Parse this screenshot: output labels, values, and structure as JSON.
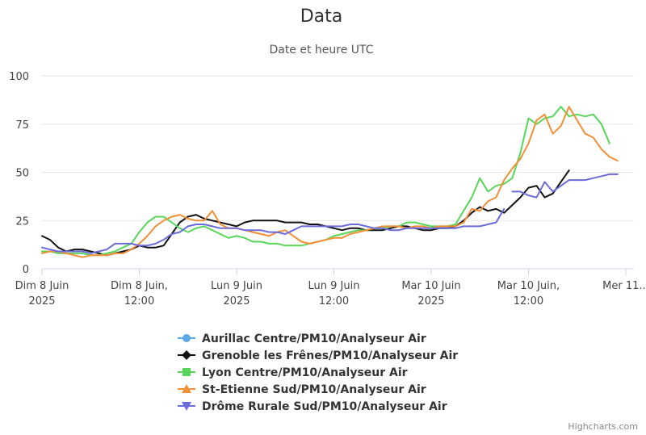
{
  "chart_data": {
    "type": "line",
    "title": "Data",
    "subtitle": "Date et heure UTC",
    "xlabel": "",
    "ylabel": "",
    "ylim": [
      0,
      100
    ],
    "yticks": [
      0,
      25,
      50,
      75,
      100
    ],
    "xlim": [
      0,
      73
    ],
    "xticks": [
      {
        "x": 0,
        "lines": [
          "Dim 8 Juin",
          "2025"
        ]
      },
      {
        "x": 12,
        "lines": [
          "Dim 8 Juin,",
          "12:00"
        ]
      },
      {
        "x": 24,
        "lines": [
          "Lun 9 Juin",
          "2025"
        ]
      },
      {
        "x": 36,
        "lines": [
          "Lun 9 Juin",
          "12:00"
        ]
      },
      {
        "x": 48,
        "lines": [
          "Mar 10 Juin",
          "2025"
        ]
      },
      {
        "x": 60,
        "lines": [
          "Mar 10 Juin,",
          "12:00"
        ]
      },
      {
        "x": 72,
        "lines": [
          "Mer 11..."
        ]
      }
    ],
    "grid": true,
    "legend_position": "bottom",
    "series": [
      {
        "name": "Aurillac Centre/PM10/Analyseur Air",
        "color": "#5aa7e6",
        "marker": "circle",
        "points": []
      },
      {
        "name": "Grenoble les Frênes/PM10/Analyseur Air",
        "color": "#111111",
        "marker": "diamond",
        "points": [
          [
            0,
            17
          ],
          [
            1,
            15
          ],
          [
            2,
            11
          ],
          [
            3,
            9
          ],
          [
            4,
            10
          ],
          [
            5,
            10
          ],
          [
            6,
            9
          ],
          [
            7,
            8
          ],
          [
            8,
            7
          ],
          [
            9,
            8
          ],
          [
            10,
            9
          ],
          [
            11,
            10
          ],
          [
            12,
            12
          ],
          [
            13,
            11
          ],
          [
            14,
            11
          ],
          [
            15,
            12
          ],
          [
            16,
            18
          ],
          [
            17,
            24
          ],
          [
            18,
            27
          ],
          [
            19,
            28
          ],
          [
            20,
            26
          ],
          [
            21,
            25
          ],
          [
            22,
            24
          ],
          [
            23,
            23
          ],
          [
            24,
            22
          ],
          [
            25,
            24
          ],
          [
            26,
            25
          ],
          [
            27,
            25
          ],
          [
            28,
            25
          ],
          [
            29,
            25
          ],
          [
            30,
            24
          ],
          [
            31,
            24
          ],
          [
            32,
            24
          ],
          [
            33,
            23
          ],
          [
            34,
            23
          ],
          [
            35,
            22
          ],
          [
            36,
            21
          ],
          [
            37,
            20
          ],
          [
            38,
            21
          ],
          [
            39,
            21
          ],
          [
            40,
            20
          ],
          [
            41,
            20
          ],
          [
            42,
            20
          ],
          [
            43,
            21
          ],
          [
            44,
            22
          ],
          [
            45,
            22
          ],
          [
            46,
            21
          ],
          [
            47,
            20
          ],
          [
            48,
            20
          ],
          [
            49,
            21
          ],
          [
            50,
            21
          ],
          [
            51,
            22
          ],
          [
            52,
            25
          ],
          [
            53,
            29
          ],
          [
            54,
            32
          ],
          [
            55,
            30
          ],
          [
            56,
            31
          ],
          [
            57,
            29
          ],
          [
            58,
            33
          ],
          [
            59,
            37
          ],
          [
            60,
            42
          ],
          [
            61,
            43
          ],
          [
            62,
            37
          ],
          [
            63,
            39
          ],
          [
            64,
            45
          ],
          [
            65,
            51
          ]
        ]
      },
      {
        "name": "Lyon Centre/PM10/Analyseur Air",
        "color": "#59d65a",
        "marker": "square",
        "points": [
          [
            0,
            9
          ],
          [
            1,
            9
          ],
          [
            2,
            8
          ],
          [
            3,
            8
          ],
          [
            4,
            8
          ],
          [
            5,
            8
          ],
          [
            6,
            7
          ],
          [
            7,
            7
          ],
          [
            8,
            8
          ],
          [
            9,
            9
          ],
          [
            10,
            11
          ],
          [
            11,
            13
          ],
          [
            12,
            19
          ],
          [
            13,
            24
          ],
          [
            14,
            27
          ],
          [
            15,
            27
          ],
          [
            16,
            24
          ],
          [
            17,
            21
          ],
          [
            18,
            19
          ],
          [
            19,
            21
          ],
          [
            20,
            22
          ],
          [
            21,
            20
          ],
          [
            22,
            18
          ],
          [
            23,
            16
          ],
          [
            24,
            17
          ],
          [
            25,
            16
          ],
          [
            26,
            14
          ],
          [
            27,
            14
          ],
          [
            28,
            13
          ],
          [
            29,
            13
          ],
          [
            30,
            12
          ],
          [
            31,
            12
          ],
          [
            32,
            12
          ],
          [
            33,
            13
          ],
          [
            34,
            14
          ],
          [
            35,
            15
          ],
          [
            36,
            17
          ],
          [
            37,
            18
          ],
          [
            38,
            19
          ],
          [
            39,
            20
          ],
          [
            40,
            20
          ],
          [
            41,
            21
          ],
          [
            42,
            21
          ],
          [
            43,
            22
          ],
          [
            44,
            22
          ],
          [
            45,
            24
          ],
          [
            46,
            24
          ],
          [
            47,
            23
          ],
          [
            48,
            22
          ],
          [
            49,
            22
          ],
          [
            50,
            22
          ],
          [
            51,
            23
          ],
          [
            52,
            30
          ],
          [
            53,
            37
          ],
          [
            54,
            47
          ],
          [
            55,
            40
          ],
          [
            56,
            43
          ],
          [
            57,
            44
          ],
          [
            58,
            47
          ],
          [
            59,
            60
          ],
          [
            60,
            78
          ],
          [
            61,
            75
          ],
          [
            62,
            78
          ],
          [
            63,
            79
          ],
          [
            64,
            84
          ],
          [
            65,
            79
          ],
          [
            66,
            80
          ],
          [
            67,
            79
          ],
          [
            68,
            80
          ],
          [
            69,
            75
          ],
          [
            70,
            65
          ]
        ]
      },
      {
        "name": "St-Etienne Sud/PM10/Analyseur Air",
        "color": "#f28f37",
        "marker": "triangle",
        "points": [
          [
            0,
            8
          ],
          [
            1,
            9
          ],
          [
            2,
            9
          ],
          [
            3,
            8
          ],
          [
            4,
            7
          ],
          [
            5,
            6
          ],
          [
            6,
            7
          ],
          [
            7,
            7
          ],
          [
            8,
            7
          ],
          [
            9,
            8
          ],
          [
            10,
            8
          ],
          [
            11,
            10
          ],
          [
            12,
            13
          ],
          [
            13,
            17
          ],
          [
            14,
            22
          ],
          [
            15,
            25
          ],
          [
            16,
            27
          ],
          [
            17,
            28
          ],
          [
            18,
            26
          ],
          [
            19,
            25
          ],
          [
            20,
            25
          ],
          [
            21,
            30
          ],
          [
            22,
            23
          ],
          [
            23,
            21
          ],
          [
            24,
            21
          ],
          [
            25,
            20
          ],
          [
            26,
            19
          ],
          [
            27,
            18
          ],
          [
            28,
            17
          ],
          [
            29,
            19
          ],
          [
            30,
            20
          ],
          [
            31,
            17
          ],
          [
            32,
            14
          ],
          [
            33,
            13
          ],
          [
            34,
            14
          ],
          [
            35,
            15
          ],
          [
            36,
            16
          ],
          [
            37,
            16
          ],
          [
            38,
            18
          ],
          [
            39,
            19
          ],
          [
            40,
            20
          ],
          [
            41,
            21
          ],
          [
            42,
            22
          ],
          [
            43,
            22
          ],
          [
            44,
            22
          ],
          [
            45,
            21
          ],
          [
            46,
            22
          ],
          [
            47,
            22
          ],
          [
            48,
            21
          ],
          [
            49,
            22
          ],
          [
            50,
            22
          ],
          [
            51,
            22
          ],
          [
            52,
            24
          ],
          [
            53,
            31
          ],
          [
            54,
            30
          ],
          [
            55,
            35
          ],
          [
            56,
            37
          ],
          [
            57,
            46
          ],
          [
            58,
            52
          ],
          [
            59,
            57
          ],
          [
            60,
            65
          ],
          [
            61,
            77
          ],
          [
            62,
            80
          ],
          [
            63,
            70
          ],
          [
            64,
            74
          ],
          [
            65,
            84
          ],
          [
            66,
            77
          ],
          [
            67,
            70
          ],
          [
            68,
            68
          ],
          [
            69,
            62
          ],
          [
            70,
            58
          ],
          [
            71,
            56
          ]
        ]
      },
      {
        "name": "Drôme Rurale Sud/PM10/Analyseur Air",
        "color": "#6b6bdb",
        "marker": "triangle-down",
        "points": [
          [
            0,
            11
          ],
          [
            1,
            10
          ],
          [
            2,
            9
          ],
          [
            3,
            9
          ],
          [
            4,
            9
          ],
          [
            5,
            9
          ],
          [
            6,
            8
          ],
          [
            7,
            9
          ],
          [
            8,
            10
          ],
          [
            9,
            13
          ],
          [
            10,
            13
          ],
          [
            11,
            13
          ],
          [
            12,
            12
          ],
          [
            13,
            12
          ],
          [
            14,
            13
          ],
          [
            15,
            15
          ],
          [
            16,
            18
          ],
          [
            17,
            19
          ],
          [
            18,
            22
          ],
          [
            19,
            23
          ],
          [
            20,
            23
          ],
          [
            21,
            22
          ],
          [
            22,
            21
          ],
          [
            23,
            21
          ],
          [
            24,
            21
          ],
          [
            25,
            20
          ],
          [
            26,
            20
          ],
          [
            27,
            20
          ],
          [
            28,
            19
          ],
          [
            29,
            19
          ],
          [
            30,
            18
          ],
          [
            31,
            20
          ],
          [
            32,
            22
          ],
          [
            33,
            22
          ],
          [
            34,
            22
          ],
          [
            35,
            22
          ],
          [
            36,
            22
          ],
          [
            37,
            22
          ],
          [
            38,
            23
          ],
          [
            39,
            23
          ],
          [
            40,
            22
          ],
          [
            41,
            21
          ],
          [
            42,
            21
          ],
          [
            43,
            20
          ],
          [
            44,
            20
          ],
          [
            45,
            21
          ],
          [
            46,
            21
          ],
          [
            47,
            21
          ],
          [
            48,
            21
          ],
          [
            49,
            21
          ],
          [
            50,
            21
          ],
          [
            51,
            21
          ],
          [
            52,
            22
          ],
          [
            53,
            22
          ],
          [
            54,
            22
          ],
          [
            55,
            23
          ],
          [
            56,
            24
          ],
          [
            57,
            31
          ],
          null,
          [
            58,
            40
          ],
          [
            59,
            40
          ],
          [
            60,
            38
          ],
          [
            61,
            37
          ],
          [
            62,
            45
          ],
          [
            63,
            40
          ],
          [
            64,
            43
          ],
          [
            65,
            46
          ],
          [
            66,
            46
          ],
          [
            67,
            46
          ],
          [
            68,
            47
          ],
          [
            69,
            48
          ],
          [
            70,
            49
          ],
          [
            71,
            49
          ]
        ]
      }
    ]
  },
  "credits": "Highcharts.com"
}
